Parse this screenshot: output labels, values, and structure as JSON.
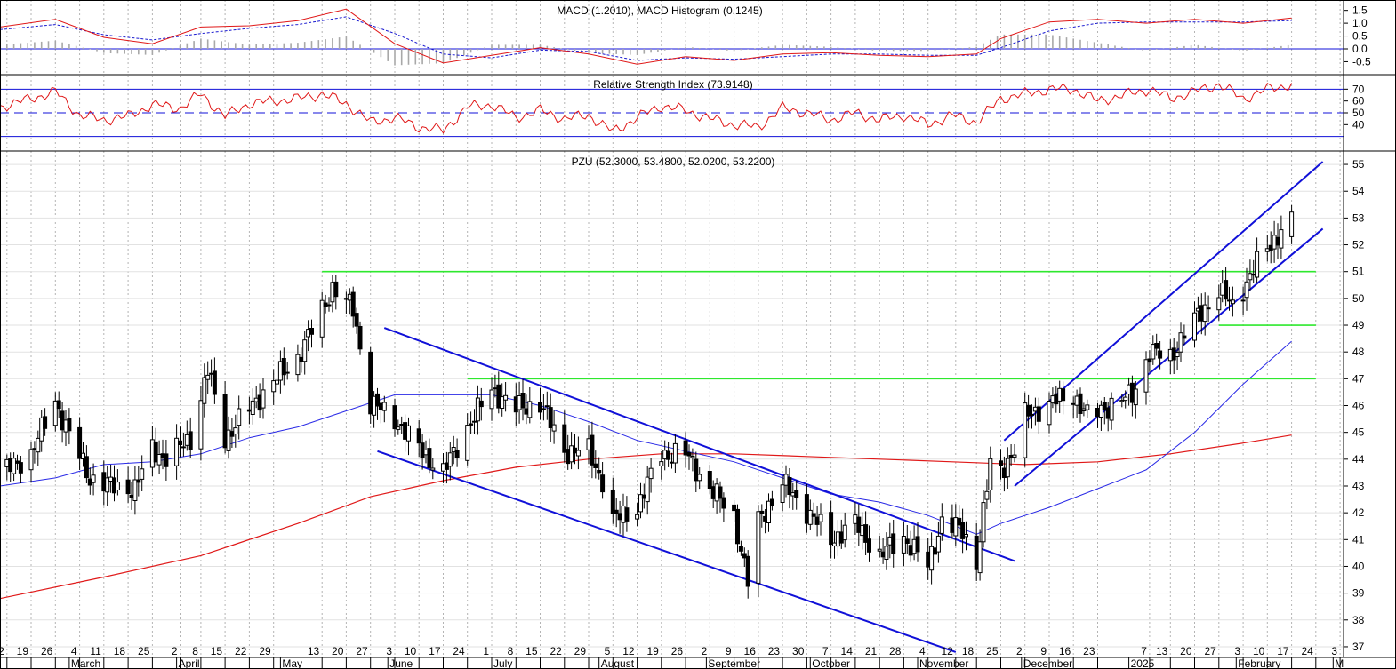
{
  "chart_data": {
    "type": "candlestick",
    "instrument": "PZU",
    "colors": {
      "price": "#000000",
      "ma_short": "#2a2ae6",
      "ma_long": "#e01818",
      "levels": "#2ee82e",
      "trend": "#1010d8",
      "grid": "#b4b4b4",
      "macd": "#e01818",
      "signal": "#1a1ad0",
      "histogram": "#a8a8a8",
      "rsi": "#e01818"
    },
    "panels": {
      "macd": {
        "title": "MACD (1.2010), MACD Histogram (0.1245)",
        "ticks": [
          "1.5",
          "1.0",
          "0.5",
          "0.0",
          "-0.5"
        ],
        "tick_values": [
          1.5,
          1.0,
          0.5,
          0.0,
          -0.5
        ],
        "ylim": [
          -0.9,
          1.8
        ],
        "zero": 0.0
      },
      "rsi": {
        "title": "Relative Strength Index (73.9148)",
        "ticks": [
          "70",
          "60",
          "50",
          "40"
        ],
        "tick_values": [
          70,
          60,
          50,
          40
        ],
        "ylim": [
          20,
          80
        ],
        "reference_lines": {
          "upper": 70,
          "mid": 50,
          "lower": 30
        }
      },
      "price": {
        "title": "PZU (52.3000, 53.4800, 52.0200, 53.2200)",
        "ticks": [
          "55",
          "54",
          "53",
          "52",
          "51",
          "50",
          "49",
          "48",
          "47",
          "46",
          "45",
          "44",
          "43",
          "42",
          "41",
          "40",
          "39",
          "38",
          "37"
        ],
        "tick_values": [
          55,
          54,
          53,
          52,
          51,
          50,
          49,
          48,
          47,
          46,
          45,
          44,
          43,
          42,
          41,
          40,
          39,
          38,
          37
        ],
        "ylim": [
          36.7,
          55.4
        ],
        "last": {
          "open": 52.3,
          "high": 53.48,
          "low": 52.02,
          "close": 53.22
        },
        "horizontal_levels": [
          {
            "value": 51.0,
            "from": "2024-05-13",
            "to": "2025-02-24"
          },
          {
            "value": 49.0,
            "from": "2025-01-27",
            "to": "2025-02-24"
          },
          {
            "value": 47.0,
            "from": "2024-06-24",
            "to": "2025-02-24"
          }
        ],
        "trendlines": [
          {
            "from": [
              "2024-05-31",
              48.9
            ],
            "to": [
              "2024-11-29",
              40.2
            ]
          },
          {
            "from": [
              "2024-05-29",
              44.3
            ],
            "to": [
              "2024-11-12",
              36.8
            ]
          },
          {
            "from": [
              "2024-11-26",
              44.7
            ],
            "to": [
              "2025-02-26",
              55.1
            ]
          },
          {
            "from": [
              "2024-11-29",
              43.0
            ],
            "to": [
              "2025-02-26",
              52.6
            ]
          }
        ]
      }
    },
    "x_axis": {
      "start": "2024-02-10",
      "end": "2025-03-04",
      "day_ticks": [
        [
          "2024-02-12",
          "2"
        ],
        [
          "2024-02-19",
          "19"
        ],
        [
          "2024-02-26",
          "26"
        ],
        [
          "2024-03-04",
          "4"
        ],
        [
          "2024-03-11",
          "11"
        ],
        [
          "2024-03-18",
          "18"
        ],
        [
          "2024-03-25",
          "25"
        ],
        [
          "2024-04-02",
          "2"
        ],
        [
          "2024-04-08",
          "8"
        ],
        [
          "2024-04-15",
          "15"
        ],
        [
          "2024-04-22",
          "22"
        ],
        [
          "2024-04-29",
          "29"
        ],
        [
          "2024-05-13",
          "13"
        ],
        [
          "2024-05-20",
          "20"
        ],
        [
          "2024-05-27",
          "27"
        ],
        [
          "2024-06-03",
          "3"
        ],
        [
          "2024-06-10",
          "10"
        ],
        [
          "2024-06-17",
          "17"
        ],
        [
          "2024-06-24",
          "24"
        ],
        [
          "2024-07-01",
          "1"
        ],
        [
          "2024-07-08",
          "8"
        ],
        [
          "2024-07-15",
          "15"
        ],
        [
          "2024-07-22",
          "22"
        ],
        [
          "2024-07-29",
          "29"
        ],
        [
          "2024-08-05",
          "5"
        ],
        [
          "2024-08-12",
          "12"
        ],
        [
          "2024-08-19",
          "19"
        ],
        [
          "2024-08-26",
          "26"
        ],
        [
          "2024-09-02",
          "2"
        ],
        [
          "2024-09-09",
          "9"
        ],
        [
          "2024-09-16",
          "16"
        ],
        [
          "2024-09-23",
          "23"
        ],
        [
          "2024-09-30",
          "30"
        ],
        [
          "2024-10-07",
          "7"
        ],
        [
          "2024-10-14",
          "14"
        ],
        [
          "2024-10-21",
          "21"
        ],
        [
          "2024-10-28",
          "28"
        ],
        [
          "2024-11-04",
          "4"
        ],
        [
          "2024-11-12",
          "12"
        ],
        [
          "2024-11-18",
          "18"
        ],
        [
          "2024-11-25",
          "25"
        ],
        [
          "2024-12-02",
          "2"
        ],
        [
          "2024-12-09",
          "9"
        ],
        [
          "2024-12-16",
          "16"
        ],
        [
          "2024-12-23",
          "23"
        ],
        [
          "2025-01-07",
          "7"
        ],
        [
          "2025-01-13",
          "13"
        ],
        [
          "2025-01-20",
          "20"
        ],
        [
          "2025-01-27",
          "27"
        ],
        [
          "2025-02-03",
          "3"
        ],
        [
          "2025-02-10",
          "10"
        ],
        [
          "2025-02-17",
          "17"
        ],
        [
          "2025-02-24",
          "24"
        ],
        [
          "2025-03-03",
          "3"
        ]
      ],
      "months": [
        [
          "2024-03-01",
          "March"
        ],
        [
          "2024-04-01",
          "April"
        ],
        [
          "2024-05-01",
          "May"
        ],
        [
          "2024-06-01",
          "June"
        ],
        [
          "2024-07-01",
          "July"
        ],
        [
          "2024-08-01",
          "August"
        ],
        [
          "2024-09-01",
          "September"
        ],
        [
          "2024-10-01",
          "October"
        ],
        [
          "2024-11-01",
          "November"
        ],
        [
          "2024-12-01",
          "December"
        ],
        [
          "2025-01-01",
          "2025"
        ],
        [
          "2025-02-01",
          "February"
        ],
        [
          "2025-03-01",
          "M"
        ]
      ]
    },
    "price_path": [
      [
        "2024-02-12",
        43.6
      ],
      [
        "2024-02-19",
        44.2
      ],
      [
        "2024-02-26",
        46.2
      ],
      [
        "2024-03-01",
        44.9
      ],
      [
        "2024-03-07",
        43.3
      ],
      [
        "2024-03-13",
        43.0
      ],
      [
        "2024-03-20",
        42.9
      ],
      [
        "2024-03-25",
        44.4
      ],
      [
        "2024-03-29",
        44.0
      ],
      [
        "2024-04-05",
        44.8
      ],
      [
        "2024-04-10",
        47.3
      ],
      [
        "2024-04-15",
        44.8
      ],
      [
        "2024-04-22",
        45.9
      ],
      [
        "2024-04-29",
        46.9
      ],
      [
        "2024-05-06",
        47.8
      ],
      [
        "2024-05-10",
        48.8
      ],
      [
        "2024-05-16",
        50.4
      ],
      [
        "2024-05-22",
        49.6
      ],
      [
        "2024-05-27",
        46.1
      ],
      [
        "2024-06-03",
        45.5
      ],
      [
        "2024-06-10",
        44.4
      ],
      [
        "2024-06-17",
        43.5
      ],
      [
        "2024-06-24",
        45.2
      ],
      [
        "2024-07-01",
        46.6
      ],
      [
        "2024-07-08",
        45.9
      ],
      [
        "2024-07-15",
        46.1
      ],
      [
        "2024-07-22",
        44.3
      ],
      [
        "2024-07-29",
        44.3
      ],
      [
        "2024-08-02",
        43.2
      ],
      [
        "2024-08-05",
        41.7
      ],
      [
        "2024-08-12",
        42.2
      ],
      [
        "2024-08-19",
        44.2
      ],
      [
        "2024-08-26",
        44.2
      ],
      [
        "2024-09-02",
        42.9
      ],
      [
        "2024-09-09",
        41.9
      ],
      [
        "2024-09-13",
        39.4
      ],
      [
        "2024-09-16",
        41.7
      ],
      [
        "2024-09-23",
        43.1
      ],
      [
        "2024-09-30",
        42.1
      ],
      [
        "2024-10-07",
        41.0
      ],
      [
        "2024-10-14",
        41.6
      ],
      [
        "2024-10-21",
        40.4
      ],
      [
        "2024-10-28",
        41.1
      ],
      [
        "2024-11-04",
        40.0
      ],
      [
        "2024-11-08",
        41.7
      ],
      [
        "2024-11-14",
        41.3
      ],
      [
        "2024-11-18",
        40.2
      ],
      [
        "2024-11-22",
        43.8
      ],
      [
        "2024-11-25",
        43.6
      ],
      [
        "2024-11-29",
        44.3
      ],
      [
        "2024-12-02",
        45.6
      ],
      [
        "2024-12-09",
        46.1
      ],
      [
        "2024-12-16",
        46.4
      ],
      [
        "2024-12-20",
        45.6
      ],
      [
        "2025-01-02",
        46.4
      ],
      [
        "2025-01-07",
        48.0
      ],
      [
        "2025-01-13",
        47.8
      ],
      [
        "2025-01-17",
        48.7
      ],
      [
        "2025-01-22",
        49.5
      ],
      [
        "2025-01-27",
        50.3
      ],
      [
        "2025-01-31",
        49.7
      ],
      [
        "2025-02-06",
        51.1
      ],
      [
        "2025-02-11",
        52.0
      ],
      [
        "2025-02-14",
        52.6
      ],
      [
        "2025-02-17",
        53.2
      ]
    ],
    "ma_short_path": [
      [
        "2024-02-10",
        43.0
      ],
      [
        "2024-02-26",
        43.3
      ],
      [
        "2024-03-11",
        43.8
      ],
      [
        "2024-03-25",
        43.9
      ],
      [
        "2024-04-08",
        44.2
      ],
      [
        "2024-04-22",
        44.8
      ],
      [
        "2024-05-06",
        45.2
      ],
      [
        "2024-05-20",
        45.8
      ],
      [
        "2024-06-03",
        46.4
      ],
      [
        "2024-06-17",
        46.4
      ],
      [
        "2024-07-01",
        46.4
      ],
      [
        "2024-07-15",
        46.0
      ],
      [
        "2024-07-29",
        45.4
      ],
      [
        "2024-08-12",
        44.7
      ],
      [
        "2024-08-26",
        44.3
      ],
      [
        "2024-09-09",
        43.9
      ],
      [
        "2024-09-23",
        43.3
      ],
      [
        "2024-10-07",
        42.7
      ],
      [
        "2024-10-21",
        42.4
      ],
      [
        "2024-11-04",
        41.9
      ],
      [
        "2024-11-18",
        41.2
      ],
      [
        "2024-11-25",
        41.6
      ],
      [
        "2024-12-09",
        42.2
      ],
      [
        "2024-12-23",
        42.9
      ],
      [
        "2025-01-06",
        43.6
      ],
      [
        "2025-01-20",
        45.0
      ],
      [
        "2025-02-03",
        46.8
      ],
      [
        "2025-02-17",
        48.4
      ]
    ],
    "ma_long_path": [
      [
        "2024-02-10",
        38.8
      ],
      [
        "2024-03-11",
        39.6
      ],
      [
        "2024-04-08",
        40.4
      ],
      [
        "2024-05-06",
        41.6
      ],
      [
        "2024-05-27",
        42.6
      ],
      [
        "2024-06-17",
        43.2
      ],
      [
        "2024-07-08",
        43.7
      ],
      [
        "2024-07-29",
        44.0
      ],
      [
        "2024-08-19",
        44.2
      ],
      [
        "2024-09-09",
        44.2
      ],
      [
        "2024-09-30",
        44.1
      ],
      [
        "2024-10-21",
        44.0
      ],
      [
        "2024-11-11",
        43.9
      ],
      [
        "2024-12-02",
        43.8
      ],
      [
        "2024-12-23",
        43.9
      ],
      [
        "2025-01-13",
        44.2
      ],
      [
        "2025-02-03",
        44.6
      ],
      [
        "2025-02-17",
        44.9
      ]
    ],
    "macd_path": [
      [
        "2024-02-10",
        0.85
      ],
      [
        "2024-02-26",
        1.15
      ],
      [
        "2024-03-11",
        0.45
      ],
      [
        "2024-03-25",
        0.2
      ],
      [
        "2024-04-08",
        0.85
      ],
      [
        "2024-04-22",
        0.9
      ],
      [
        "2024-05-06",
        1.1
      ],
      [
        "2024-05-20",
        1.55
      ],
      [
        "2024-06-03",
        0.2
      ],
      [
        "2024-06-17",
        -0.55
      ],
      [
        "2024-07-01",
        -0.25
      ],
      [
        "2024-07-15",
        0.05
      ],
      [
        "2024-07-29",
        -0.2
      ],
      [
        "2024-08-12",
        -0.6
      ],
      [
        "2024-08-26",
        -0.3
      ],
      [
        "2024-09-09",
        -0.45
      ],
      [
        "2024-09-23",
        -0.2
      ],
      [
        "2024-10-07",
        -0.15
      ],
      [
        "2024-10-21",
        -0.25
      ],
      [
        "2024-11-04",
        -0.3
      ],
      [
        "2024-11-18",
        -0.2
      ],
      [
        "2024-11-25",
        0.4
      ],
      [
        "2024-12-09",
        1.05
      ],
      [
        "2024-12-23",
        1.15
      ],
      [
        "2025-01-06",
        1.0
      ],
      [
        "2025-01-20",
        1.15
      ],
      [
        "2025-02-03",
        1.0
      ],
      [
        "2025-02-17",
        1.2
      ]
    ],
    "signal_path": [
      [
        "2024-02-10",
        0.75
      ],
      [
        "2024-02-26",
        0.95
      ],
      [
        "2024-03-11",
        0.55
      ],
      [
        "2024-03-25",
        0.35
      ],
      [
        "2024-04-08",
        0.6
      ],
      [
        "2024-04-22",
        0.8
      ],
      [
        "2024-05-06",
        0.95
      ],
      [
        "2024-05-20",
        1.25
      ],
      [
        "2024-06-03",
        0.6
      ],
      [
        "2024-06-17",
        -0.2
      ],
      [
        "2024-07-01",
        -0.35
      ],
      [
        "2024-07-15",
        -0.05
      ],
      [
        "2024-07-29",
        -0.1
      ],
      [
        "2024-08-12",
        -0.45
      ],
      [
        "2024-08-26",
        -0.35
      ],
      [
        "2024-09-09",
        -0.4
      ],
      [
        "2024-09-23",
        -0.3
      ],
      [
        "2024-10-07",
        -0.2
      ],
      [
        "2024-10-21",
        -0.2
      ],
      [
        "2024-11-04",
        -0.25
      ],
      [
        "2024-11-18",
        -0.25
      ],
      [
        "2024-11-25",
        0.05
      ],
      [
        "2024-12-09",
        0.7
      ],
      [
        "2024-12-23",
        1.0
      ],
      [
        "2025-01-06",
        1.05
      ],
      [
        "2025-01-20",
        1.05
      ],
      [
        "2025-02-03",
        1.05
      ],
      [
        "2025-02-17",
        1.1
      ]
    ],
    "rsi_path": [
      [
        "2024-02-10",
        55
      ],
      [
        "2024-02-19",
        62
      ],
      [
        "2024-02-26",
        68
      ],
      [
        "2024-03-04",
        48
      ],
      [
        "2024-03-11",
        44
      ],
      [
        "2024-03-18",
        47
      ],
      [
        "2024-03-25",
        57
      ],
      [
        "2024-04-02",
        54
      ],
      [
        "2024-04-08",
        66
      ],
      [
        "2024-04-15",
        47
      ],
      [
        "2024-04-22",
        58
      ],
      [
        "2024-04-29",
        60
      ],
      [
        "2024-05-06",
        62
      ],
      [
        "2024-05-13",
        66
      ],
      [
        "2024-05-20",
        58
      ],
      [
        "2024-05-27",
        42
      ],
      [
        "2024-06-03",
        46
      ],
      [
        "2024-06-10",
        38
      ],
      [
        "2024-06-17",
        35
      ],
      [
        "2024-06-24",
        55
      ],
      [
        "2024-07-01",
        57
      ],
      [
        "2024-07-08",
        46
      ],
      [
        "2024-07-15",
        52
      ],
      [
        "2024-07-22",
        45
      ],
      [
        "2024-07-29",
        48
      ],
      [
        "2024-08-05",
        34
      ],
      [
        "2024-08-12",
        46
      ],
      [
        "2024-08-19",
        56
      ],
      [
        "2024-08-26",
        52
      ],
      [
        "2024-09-02",
        45
      ],
      [
        "2024-09-09",
        40
      ],
      [
        "2024-09-16",
        38
      ],
      [
        "2024-09-23",
        54
      ],
      [
        "2024-09-30",
        50
      ],
      [
        "2024-10-07",
        44
      ],
      [
        "2024-10-14",
        50
      ],
      [
        "2024-10-21",
        44
      ],
      [
        "2024-10-28",
        48
      ],
      [
        "2024-11-04",
        40
      ],
      [
        "2024-11-11",
        48
      ],
      [
        "2024-11-18",
        42
      ],
      [
        "2024-11-25",
        62
      ],
      [
        "2024-12-02",
        66
      ],
      [
        "2024-12-09",
        70
      ],
      [
        "2024-12-16",
        70
      ],
      [
        "2024-12-23",
        60
      ],
      [
        "2025-01-07",
        70
      ],
      [
        "2025-01-13",
        62
      ],
      [
        "2025-01-20",
        68
      ],
      [
        "2025-01-27",
        74
      ],
      [
        "2025-02-03",
        62
      ],
      [
        "2025-02-10",
        70
      ],
      [
        "2025-02-17",
        74
      ]
    ],
    "histogram_span": [
      "2024-02-10",
      "2025-02-17"
    ]
  }
}
